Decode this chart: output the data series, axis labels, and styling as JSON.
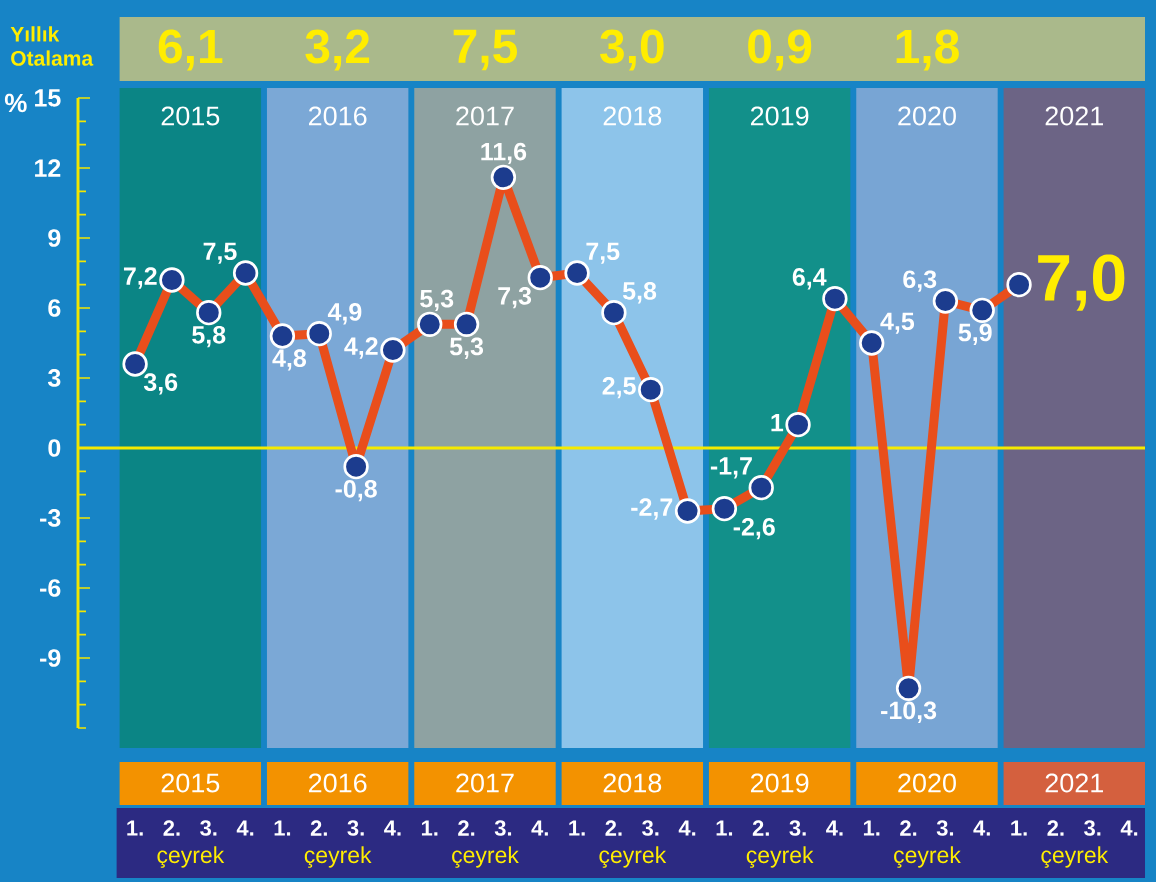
{
  "chart_data": {
    "type": "line",
    "ylabel": "%",
    "xlabel": "çeyrek",
    "annotations": [
      "Yıllık Otalama",
      "6,1",
      "3,2",
      "7,5",
      "3,0",
      "0,9",
      "1,8"
    ],
    "categories": [
      "1.",
      "2.",
      "3.",
      "4.",
      "1.",
      "2.",
      "3.",
      "4.",
      "1.",
      "2.",
      "3.",
      "4.",
      "1.",
      "2.",
      "3.",
      "4.",
      "1.",
      "2.",
      "3.",
      "4.",
      "1.",
      "2.",
      "3.",
      "4.",
      "1.",
      "2.",
      "3.",
      "4."
    ],
    "series": [
      {
        "color": "#e94e1b",
        "values": [
          3.6,
          7.2,
          5.8,
          7.5,
          4.8,
          4.9,
          -0.8,
          4.2,
          5.3,
          5.3,
          11.6,
          7.3,
          7.5,
          5.8,
          2.5,
          -2.7,
          -2.6,
          -1.7,
          1,
          6.4,
          4.5,
          -10.3,
          6.3,
          5.9,
          7.0,
          null,
          null,
          null
        ],
        "value_labels": [
          "3,6",
          "7,2",
          "5,8",
          "7,5",
          "4,8",
          "4,9",
          "-0,8",
          "4,2",
          "5,3",
          "5,3",
          "11,6",
          "7,3",
          "7,5",
          "5,8",
          "2,5",
          "-2,7",
          "-2,6",
          "-1,7",
          "1",
          "6,4",
          "4,5",
          "-10,3",
          "6,3",
          "5,9",
          "7,0",
          null,
          null,
          null
        ]
      }
    ],
    "marker": "circle",
    "line_style": "solid",
    "ylim": [
      -12,
      15
    ],
    "yticks": [
      -9,
      -6,
      -3,
      0,
      3,
      6,
      9,
      12,
      15
    ],
    "x2lim": [
      2014.2375,
      2021.48
    ],
    "x2ticks": [
      2015,
      2016,
      2017,
      2018,
      2019,
      2020,
      2021
    ],
    "ref_lines": [
      {
        "axis": "y",
        "value": 0,
        "color": "#f5ea00"
      }
    ],
    "bands": [
      {
        "axis": "x2",
        "from": 2014.52,
        "to": 2015.48,
        "label": "2015",
        "color": "#0b8585"
      },
      {
        "axis": "x2",
        "from": 2015.52,
        "to": 2016.48,
        "label": "2016",
        "color": "#7ba8d6"
      },
      {
        "axis": "x2",
        "from": 2016.52,
        "to": 2017.48,
        "label": "2017",
        "color": "#8ea2a2"
      },
      {
        "axis": "x2",
        "from": 2017.52,
        "to": 2018.48,
        "label": "2018",
        "color": "#8dc4ea"
      },
      {
        "axis": "x2",
        "from": 2018.52,
        "to": 2019.48,
        "label": "2019",
        "color": "#12908a"
      },
      {
        "axis": "x2",
        "from": 2019.52,
        "to": 2020.48,
        "label": "2020",
        "color": "#78a5d4"
      },
      {
        "axis": "x2",
        "from": 2020.52,
        "to": 2021.48,
        "label": "2021",
        "color": "#6c6485"
      }
    ]
  }
}
